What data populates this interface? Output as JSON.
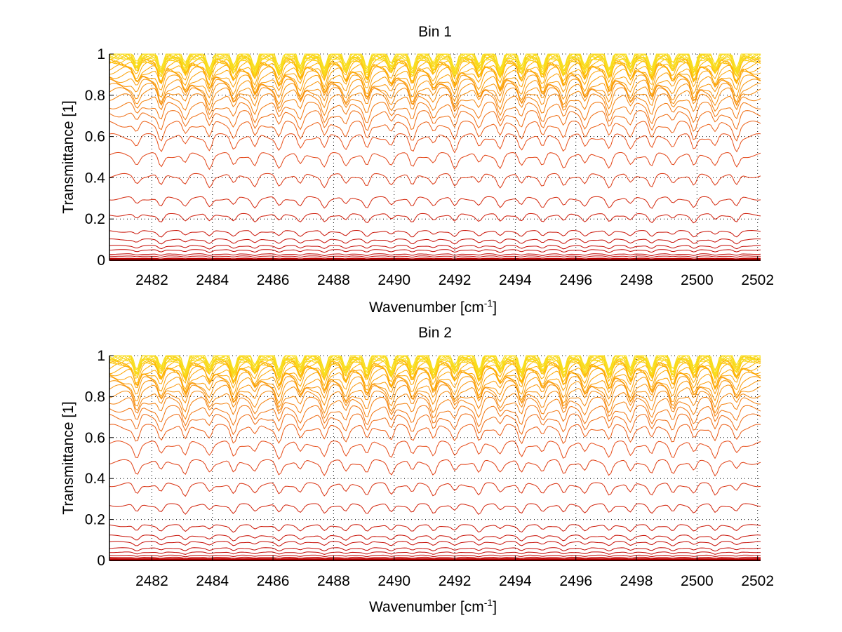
{
  "chart_data": [
    {
      "type": "line",
      "title": "Bin 1",
      "xlabel": "Wavenumber [cm",
      "xlabel_superscript": "-1",
      "xlabel_suffix": "]",
      "ylabel": "Transmittance [1]",
      "xlim": [
        2480.6,
        2502.1
      ],
      "ylim": [
        0,
        1
      ],
      "xticks": [
        2482,
        2484,
        2486,
        2488,
        2490,
        2492,
        2494,
        2496,
        2498,
        2500,
        2502
      ],
      "xtick_labels": [
        "2482",
        "2484",
        "2486",
        "2488",
        "2490",
        "2492",
        "2494",
        "2496",
        "2498",
        "2500",
        "2502"
      ],
      "yticks": [
        0,
        0.2,
        0.4,
        0.6,
        0.8,
        1
      ],
      "ytick_labels": [
        "0",
        "0.2",
        "0.4",
        "0.6",
        "0.8",
        "1"
      ],
      "grid": true,
      "legend": "none",
      "colormap": "autumn (dark red at low transmittance, orange to yellow near 1)",
      "line_centers": [
        2481.5,
        2482.3,
        2483.1,
        2483.9,
        2484.7,
        2485.4,
        2486.2,
        2486.9,
        2487.7,
        2488.4,
        2489.1,
        2489.9,
        2490.6,
        2491.3,
        2492.0,
        2492.8,
        2493.5,
        2494.2,
        2494.9,
        2495.6,
        2496.3,
        2497.1,
        2497.8,
        2498.5,
        2499.2,
        2499.9,
        2500.6,
        2501.3
      ],
      "series_baselines": [
        0.0,
        0.003,
        0.006,
        0.01,
        0.02,
        0.03,
        0.05,
        0.07,
        0.1,
        0.14,
        0.22,
        0.3,
        0.41,
        0.51,
        0.6,
        0.66,
        0.71,
        0.75,
        0.79,
        0.82,
        0.84,
        0.86,
        0.88,
        0.9,
        0.92,
        0.93,
        0.945,
        0.955,
        0.965,
        0.972,
        0.978,
        0.983,
        0.987,
        0.99,
        0.993,
        0.995,
        0.997,
        0.998,
        0.999,
        1.0
      ],
      "colors": {
        "low": "#c00000",
        "mid": "#e8501a",
        "high": "#ffb000",
        "top": "#f8e020"
      }
    },
    {
      "type": "line",
      "title": "Bin 2",
      "xlabel": "Wavenumber [cm",
      "xlabel_superscript": "-1",
      "xlabel_suffix": "]",
      "ylabel": "Transmittance [1]",
      "xlim": [
        2480.6,
        2502.1
      ],
      "ylim": [
        0,
        1
      ],
      "xticks": [
        2482,
        2484,
        2486,
        2488,
        2490,
        2492,
        2494,
        2496,
        2498,
        2500,
        2502
      ],
      "xtick_labels": [
        "2482",
        "2484",
        "2486",
        "2488",
        "2490",
        "2492",
        "2494",
        "2496",
        "2498",
        "2500",
        "2502"
      ],
      "yticks": [
        0,
        0.2,
        0.4,
        0.6,
        0.8,
        1
      ],
      "ytick_labels": [
        "0",
        "0.2",
        "0.4",
        "0.6",
        "0.8",
        "1"
      ],
      "grid": true,
      "legend": "none",
      "colormap": "autumn (dark red at low transmittance, orange to yellow near 1)",
      "line_centers": [
        2481.5,
        2482.3,
        2483.1,
        2483.9,
        2484.7,
        2485.4,
        2486.2,
        2486.9,
        2487.7,
        2488.4,
        2489.1,
        2489.9,
        2490.6,
        2491.3,
        2492.0,
        2492.8,
        2493.5,
        2494.2,
        2494.9,
        2495.6,
        2496.3,
        2497.1,
        2497.8,
        2498.5,
        2499.2,
        2499.9,
        2500.6,
        2501.3
      ],
      "series_baselines": [
        0.0,
        0.004,
        0.008,
        0.015,
        0.025,
        0.04,
        0.06,
        0.09,
        0.12,
        0.17,
        0.27,
        0.37,
        0.48,
        0.57,
        0.65,
        0.7,
        0.74,
        0.78,
        0.81,
        0.84,
        0.86,
        0.88,
        0.9,
        0.92,
        0.93,
        0.945,
        0.955,
        0.965,
        0.972,
        0.978,
        0.983,
        0.987,
        0.99,
        0.993,
        0.995,
        0.997,
        0.998,
        0.999,
        1.0
      ],
      "colors": {
        "low": "#c00000",
        "mid": "#e8501a",
        "high": "#ffb000",
        "top": "#f8e020"
      }
    }
  ]
}
